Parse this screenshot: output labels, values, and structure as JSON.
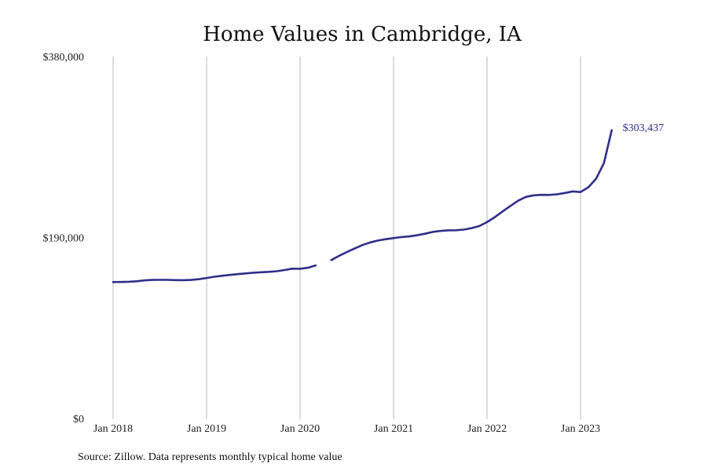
{
  "chart_data": {
    "type": "line",
    "title": "Home Values in Cambridge, IA",
    "source": "Source: Zillow. Data represents monthly typical home value",
    "ylim": [
      0,
      380000
    ],
    "yticks": [
      {
        "value": 0,
        "label": "$0"
      },
      {
        "value": 190000,
        "label": "$190,000"
      },
      {
        "value": 380000,
        "label": "$380,000"
      }
    ],
    "xlim": [
      "2018-01",
      "2023-12"
    ],
    "xticks": [
      {
        "value": "2018-01",
        "label": "Jan 2018"
      },
      {
        "value": "2019-01",
        "label": "Jan 2019"
      },
      {
        "value": "2020-01",
        "label": "Jan 2020"
      },
      {
        "value": "2021-01",
        "label": "Jan 2021"
      },
      {
        "value": "2022-01",
        "label": "Jan 2022"
      },
      {
        "value": "2023-01",
        "label": "Jan 2023"
      }
    ],
    "grid": {
      "vertical": true,
      "horizontal": false
    },
    "line_color": "#2e2e8a",
    "end_label": "$303,437",
    "series": [
      {
        "x": [
          "2018-01",
          "2018-02",
          "2018-03",
          "2018-04",
          "2018-05",
          "2018-06",
          "2018-07",
          "2018-08",
          "2018-09",
          "2018-10",
          "2018-11",
          "2018-12",
          "2019-01",
          "2019-02",
          "2019-03",
          "2019-04",
          "2019-05",
          "2019-06",
          "2019-07",
          "2019-08",
          "2019-09",
          "2019-10",
          "2019-11",
          "2019-12",
          "2020-01",
          "2020-02",
          "2020-03",
          "2020-04",
          "2020-05",
          "2020-06",
          "2020-07",
          "2020-08",
          "2020-09",
          "2020-10",
          "2020-11",
          "2020-12",
          "2021-01",
          "2021-02",
          "2021-03",
          "2021-04",
          "2021-05",
          "2021-06",
          "2021-07",
          "2021-08",
          "2021-09",
          "2021-10",
          "2021-11",
          "2021-12",
          "2022-01",
          "2022-02",
          "2022-03",
          "2022-04",
          "2022-05",
          "2022-06",
          "2022-07",
          "2022-08",
          "2022-09",
          "2022-10",
          "2022-11",
          "2022-12",
          "2023-01",
          "2023-02",
          "2023-03",
          "2023-04",
          "2023-05"
        ],
        "y": [
          144000,
          144100,
          144300,
          144800,
          145700,
          146200,
          146300,
          146300,
          146100,
          146000,
          146200,
          147000,
          148300,
          149600,
          150600,
          151500,
          152300,
          153100,
          153800,
          154300,
          154700,
          155400,
          156600,
          158100,
          157900,
          159000,
          161500,
          null,
          167000,
          171500,
          175500,
          179200,
          182800,
          185600,
          187600,
          189000,
          190200,
          191200,
          191900,
          193100,
          194700,
          196600,
          197700,
          198300,
          198400,
          199100,
          200600,
          202800,
          207000,
          212200,
          218200,
          224000,
          229500,
          233400,
          235100,
          235600,
          235500,
          236200,
          237600,
          239200,
          238500,
          243500,
          252500,
          269000,
          303437
        ]
      }
    ]
  }
}
